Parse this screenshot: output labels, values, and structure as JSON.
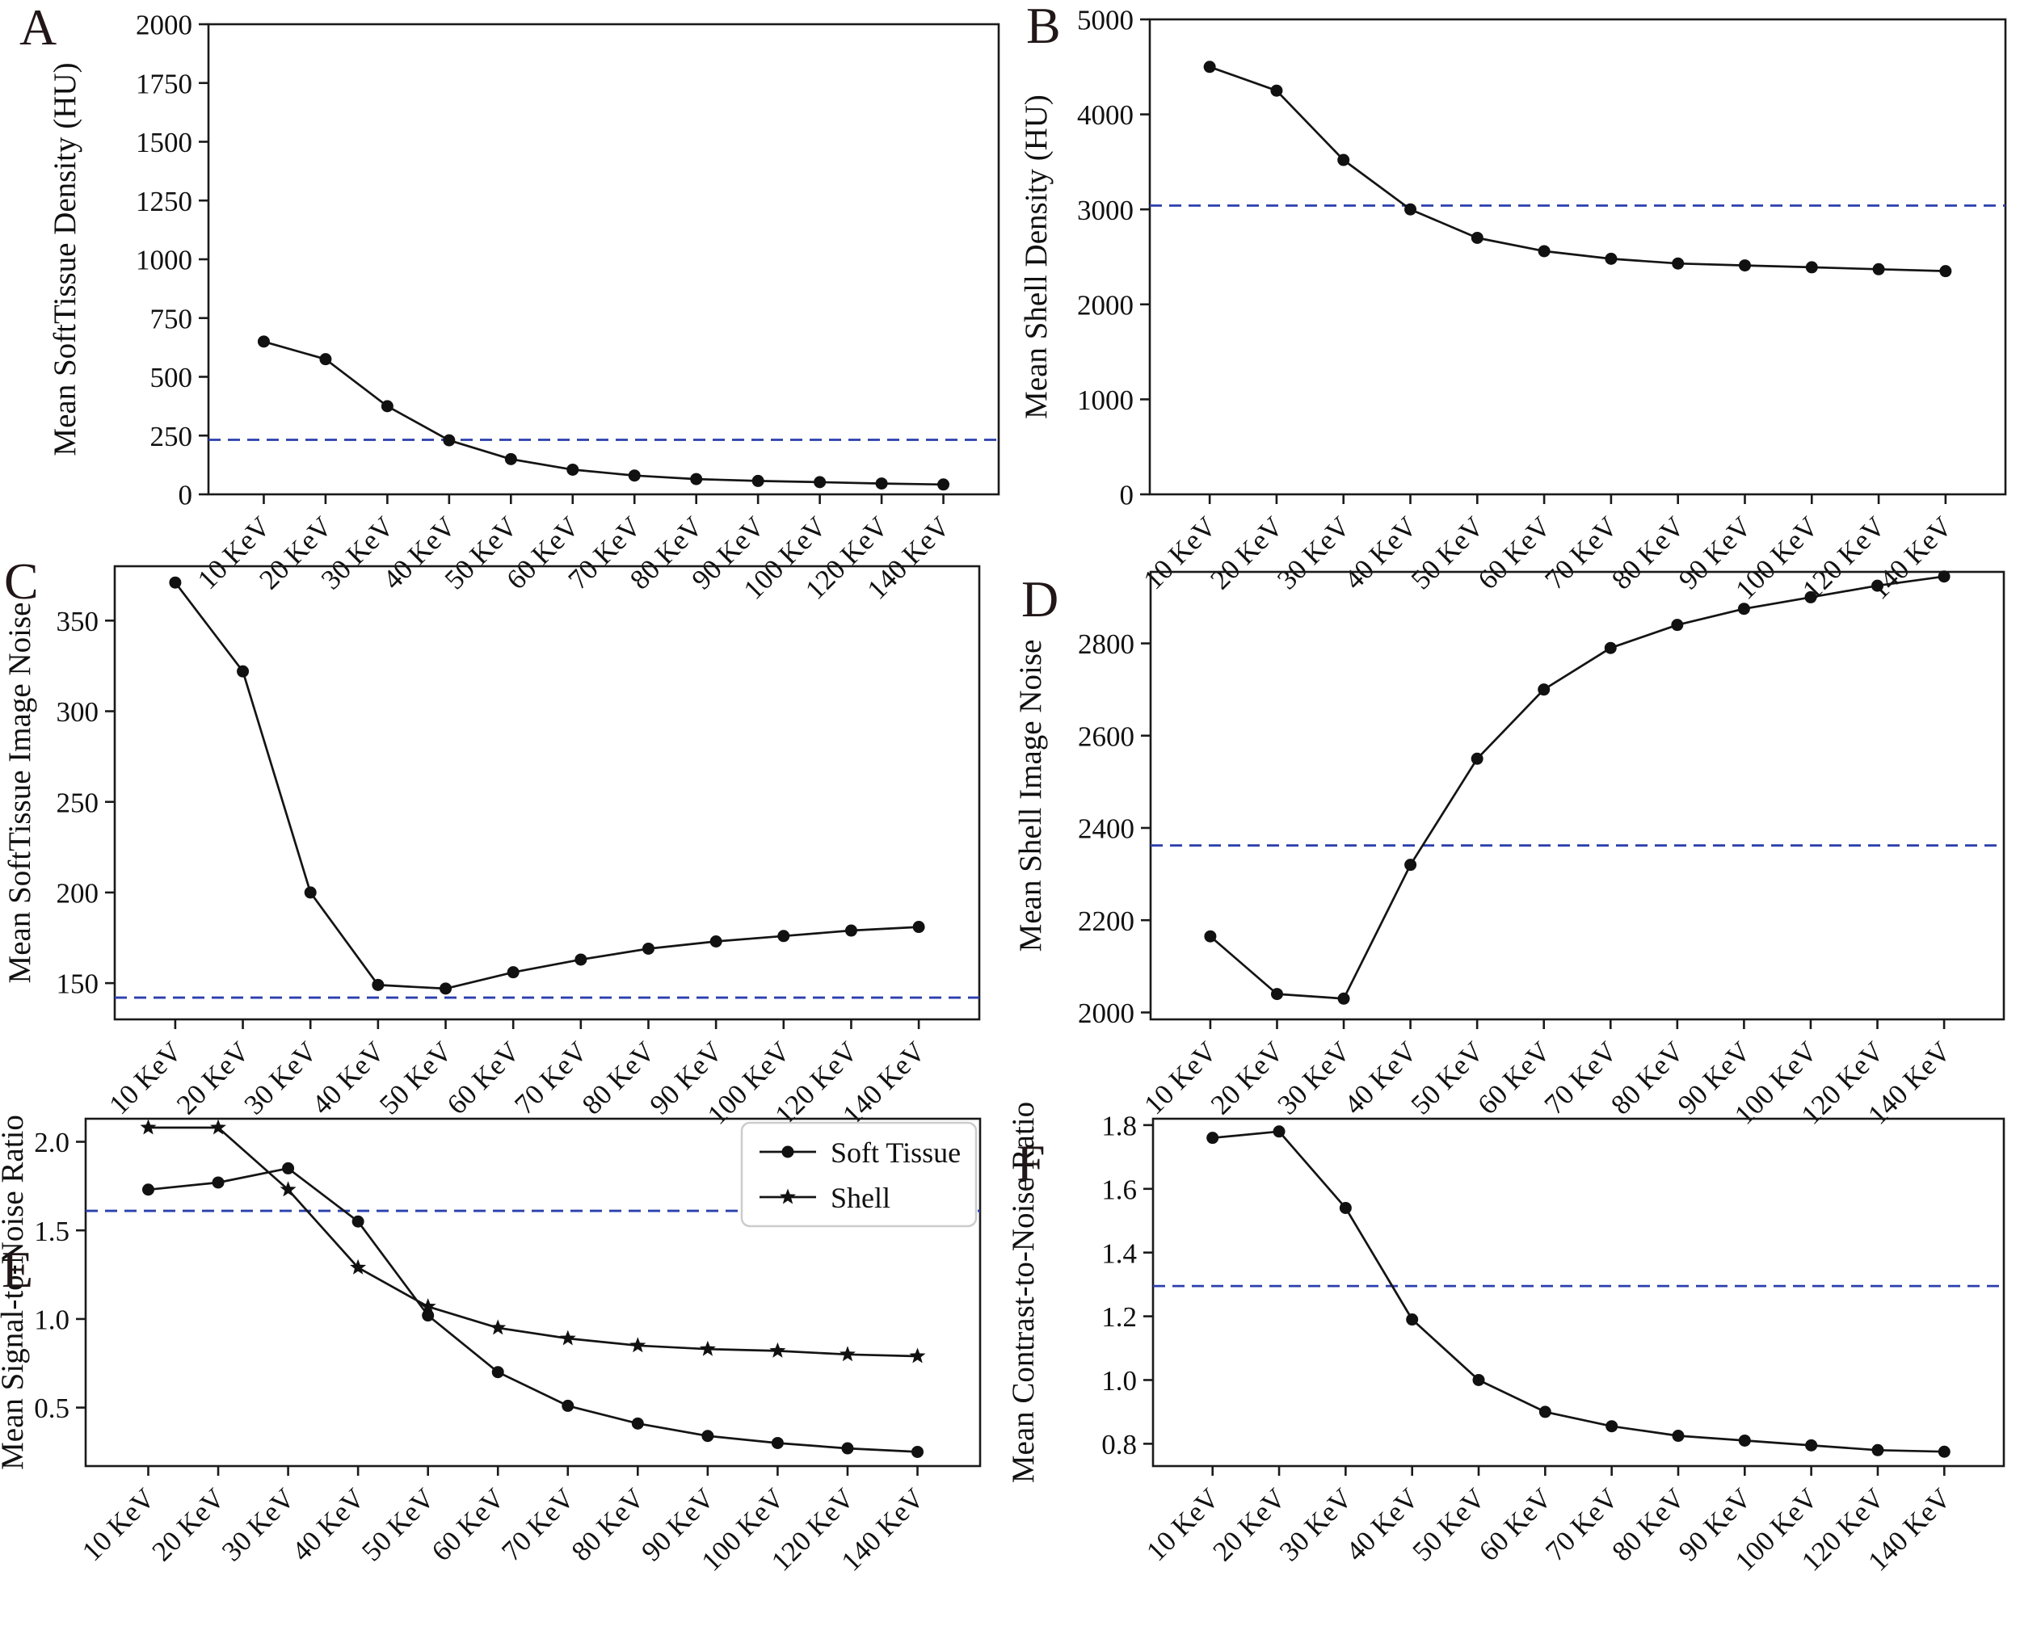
{
  "figure": {
    "background": "#ffffff",
    "line_color": "#141414",
    "marker_color": "#111111",
    "ref_line_color": "#2b3fad",
    "spine_color": "#1a1a1a",
    "legend_border_color": "#cccccc",
    "panel_letter_color": "#221718"
  },
  "chart_data": [
    {
      "panel_label": "A",
      "type": "line",
      "title": "",
      "xlabel": "",
      "ylabel": "Mean SoftTissue Density (HU)",
      "categories": [
        "10 KeV",
        "20 KeV",
        "30 KeV",
        "40 KeV",
        "50 KeV",
        "60 KeV",
        "70 KeV",
        "80 KeV",
        "90 KeV",
        "100 KeV",
        "120 KeV",
        "140 KeV"
      ],
      "series": [
        {
          "name": "SoftTissue Density",
          "marker": "circle",
          "values": [
            650,
            575,
            375,
            230,
            150,
            105,
            80,
            65,
            57,
            52,
            46,
            42
          ]
        }
      ],
      "ref_line": 232,
      "ylim": [
        0,
        2000
      ],
      "yticks": [
        0,
        250,
        500,
        750,
        1000,
        1250,
        1500,
        1750,
        2000
      ],
      "ytick_labels": [
        "0",
        "250",
        "500",
        "750",
        "1000",
        "1250",
        "1500",
        "1750",
        "2000"
      ],
      "grid": false,
      "legend": null
    },
    {
      "panel_label": "B",
      "type": "line",
      "title": "",
      "xlabel": "",
      "ylabel": "Mean Shell Density (HU)",
      "categories": [
        "10 KeV",
        "20 KeV",
        "30 KeV",
        "40 KeV",
        "50 KeV",
        "60 KeV",
        "70 KeV",
        "80 KeV",
        "90 KeV",
        "100 KeV",
        "120 KeV",
        "140 KeV"
      ],
      "series": [
        {
          "name": "Shell Density",
          "marker": "circle",
          "values": [
            4500,
            4250,
            3520,
            3000,
            2700,
            2560,
            2480,
            2430,
            2410,
            2390,
            2370,
            2350
          ]
        }
      ],
      "ref_line": 3040,
      "ylim": [
        0,
        5000
      ],
      "yticks": [
        0,
        1000,
        2000,
        3000,
        4000,
        5000
      ],
      "ytick_labels": [
        "0",
        "1000",
        "2000",
        "3000",
        "4000",
        "5000"
      ],
      "grid": false,
      "legend": null
    },
    {
      "panel_label": "C",
      "type": "line",
      "title": "",
      "xlabel": "",
      "ylabel": "Mean SoftTissue Image Noise",
      "categories": [
        "10 KeV",
        "20 KeV",
        "30 KeV",
        "40 KeV",
        "50 KeV",
        "60 KeV",
        "70 KeV",
        "80 KeV",
        "90 KeV",
        "100 KeV",
        "120 KeV",
        "140 KeV"
      ],
      "series": [
        {
          "name": "SoftTissue Image Noise",
          "marker": "circle",
          "values": [
            371,
            322,
            200,
            149,
            147,
            156,
            163,
            169,
            173,
            176,
            179,
            181
          ]
        }
      ],
      "ref_line": 142,
      "ylim": [
        130,
        380
      ],
      "yticks": [
        150,
        200,
        250,
        300,
        350
      ],
      "ytick_labels": [
        "150",
        "200",
        "250",
        "300",
        "350"
      ],
      "grid": false,
      "legend": null
    },
    {
      "panel_label": "D",
      "type": "line",
      "title": "",
      "xlabel": "",
      "ylabel": "Mean Shell Image Noise",
      "categories": [
        "10 KeV",
        "20 KeV",
        "30 KeV",
        "40 KeV",
        "50 KeV",
        "60 KeV",
        "70 KeV",
        "80 KeV",
        "90 KeV",
        "100 KeV",
        "120 KeV",
        "140 KeV"
      ],
      "series": [
        {
          "name": "Shell Image Noise",
          "marker": "circle",
          "values": [
            2165,
            2040,
            2030,
            2320,
            2550,
            2700,
            2790,
            2840,
            2875,
            2900,
            2925,
            2945
          ]
        }
      ],
      "ref_line": 2362,
      "ylim": [
        1985,
        2955
      ],
      "yticks": [
        2000,
        2200,
        2400,
        2600,
        2800
      ],
      "ytick_labels": [
        "2000",
        "2200",
        "2400",
        "2600",
        "2800"
      ],
      "grid": false,
      "legend": null
    },
    {
      "panel_label": "E",
      "type": "line",
      "title": "",
      "xlabel": "",
      "ylabel": "Mean Signal-to-Noise Ratio",
      "categories": [
        "10 KeV",
        "20 KeV",
        "30 KeV",
        "40 KeV",
        "50 KeV",
        "60 KeV",
        "70 KeV",
        "80 KeV",
        "90 KeV",
        "100 KeV",
        "120 KeV",
        "140 KeV"
      ],
      "series": [
        {
          "name": "Soft Tissue",
          "marker": "circle",
          "values": [
            1.73,
            1.77,
            1.85,
            1.55,
            1.02,
            0.7,
            0.51,
            0.41,
            0.34,
            0.3,
            0.27,
            0.25
          ]
        },
        {
          "name": "Shell",
          "marker": "star",
          "values": [
            2.08,
            2.08,
            1.73,
            1.29,
            1.07,
            0.95,
            0.89,
            0.85,
            0.83,
            0.82,
            0.8,
            0.79
          ]
        }
      ],
      "ref_line": 1.61,
      "ylim": [
        0.17,
        2.13
      ],
      "yticks": [
        0.5,
        1.0,
        1.5,
        2.0
      ],
      "ytick_labels": [
        "0.5",
        "1.0",
        "1.5",
        "2.0"
      ],
      "grid": false,
      "legend": {
        "position": "top-right",
        "entries": [
          {
            "label": "Soft Tissue",
            "marker": "circle"
          },
          {
            "label": "Shell",
            "marker": "star"
          }
        ]
      }
    },
    {
      "panel_label": "F",
      "type": "line",
      "title": "",
      "xlabel": "",
      "ylabel": "Mean Contrast-to-Noise Ratio",
      "categories": [
        "10 KeV",
        "20 KeV",
        "30 KeV",
        "40 KeV",
        "50 KeV",
        "60 KeV",
        "70 KeV",
        "80 KeV",
        "90 KeV",
        "100 KeV",
        "120 KeV",
        "140 KeV"
      ],
      "series": [
        {
          "name": "Contrast-to-Noise",
          "marker": "circle",
          "values": [
            1.76,
            1.78,
            1.54,
            1.19,
            1.0,
            0.9,
            0.855,
            0.825,
            0.81,
            0.795,
            0.78,
            0.775
          ]
        }
      ],
      "ref_line": 1.295,
      "ylim": [
        0.73,
        1.82
      ],
      "yticks": [
        0.8,
        1.0,
        1.2,
        1.4,
        1.6,
        1.8
      ],
      "ytick_labels": [
        "0.8",
        "1.0",
        "1.2",
        "1.4",
        "1.6",
        "1.8"
      ],
      "grid": false,
      "legend": null
    }
  ]
}
